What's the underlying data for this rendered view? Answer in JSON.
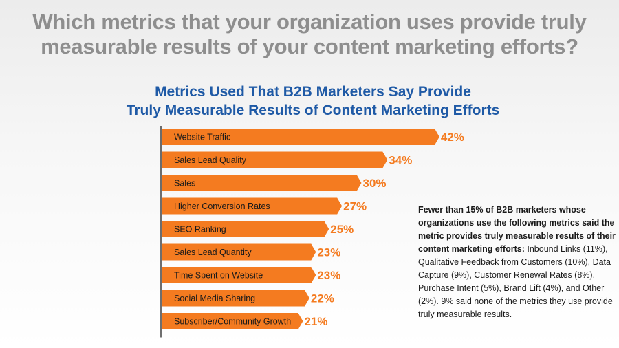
{
  "headline": {
    "line1": "Which metrics that your organization uses provide truly",
    "line2": "measurable results of your content marketing efforts?"
  },
  "colors": {
    "bar": "#f47b20",
    "value_label": "#f47b20",
    "title": "#1f5aa6",
    "headline": "#8e8e8e"
  },
  "chart_data": {
    "type": "bar",
    "orientation": "horizontal",
    "title_line1": "Metrics Used That B2B Marketers Say Provide",
    "title_line2": "Truly Measurable Results of Content Marketing Efforts",
    "categories": [
      "Website Traffic",
      "Sales Lead Quality",
      "Sales",
      "Higher Conversion Rates",
      "SEO Ranking",
      "Sales Lead Quantity",
      "Time Spent on Website",
      "Social Media Sharing",
      "Subscriber/Community Growth"
    ],
    "values": [
      42,
      34,
      30,
      27,
      25,
      23,
      23,
      22,
      21
    ],
    "value_labels": [
      "42%",
      "34%",
      "30%",
      "27%",
      "25%",
      "23%",
      "23%",
      "22%",
      "21%"
    ],
    "xlabel": "",
    "ylabel": "",
    "grid": false
  },
  "note": {
    "bold_text": "Fewer than 15% of B2B marketers whose organizations use the following metrics said the metric provides truly measurable results of their content marketing efforts:",
    "regular_text": "Inbound Links (11%), Qualitative Feedback from Customers (10%), Data Capture (9%), Customer Renewal Rates (8%), Purchase Intent (5%), Brand Lift (4%), and Other (2%). 9% said none of the metrics they use provide truly measurable results."
  }
}
